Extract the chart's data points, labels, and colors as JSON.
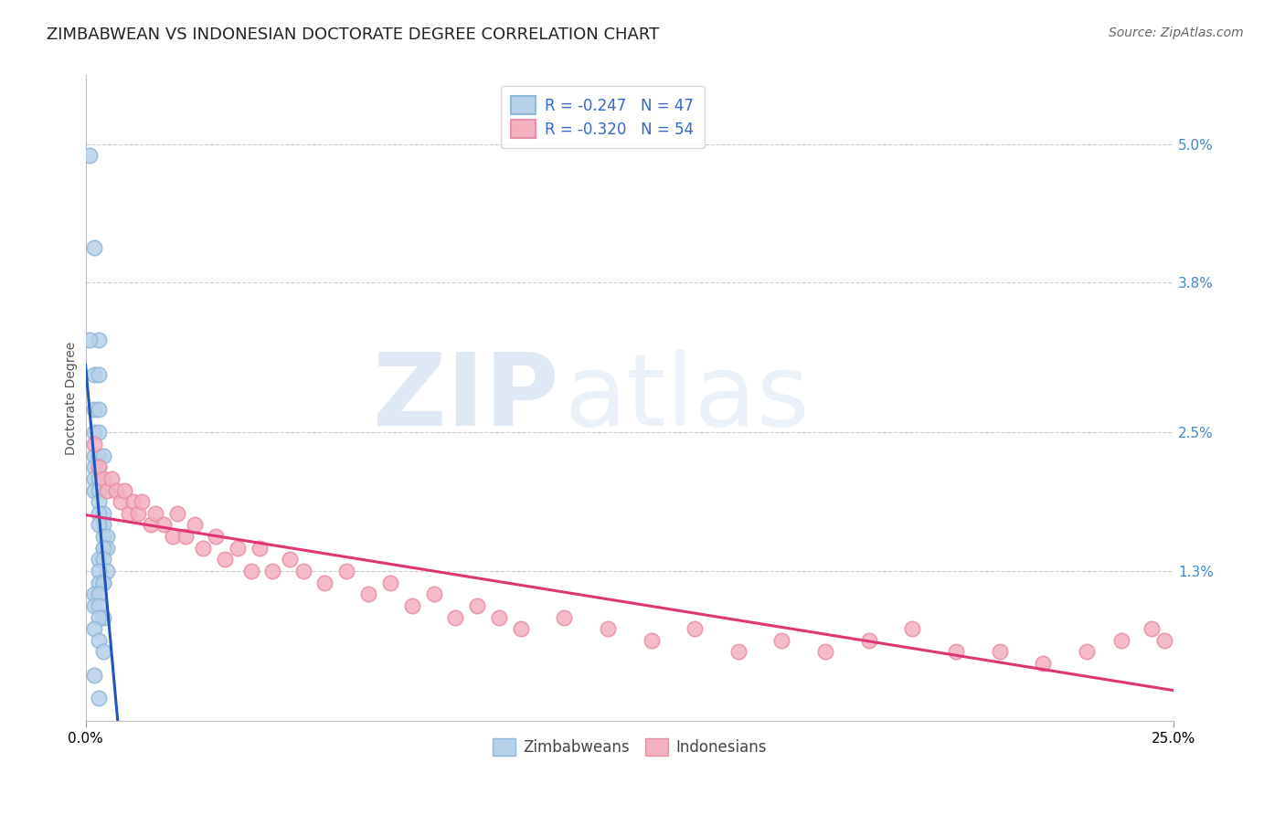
{
  "title": "ZIMBABWEAN VS INDONESIAN DOCTORATE DEGREE CORRELATION CHART",
  "source": "Source: ZipAtlas.com",
  "ylabel": "Doctorate Degree",
  "xmin": 0.0,
  "xmax": 0.25,
  "ymin": 0.0,
  "ymax": 0.056,
  "ytick_vals": [
    0.013,
    0.025,
    0.038,
    0.05
  ],
  "ytick_labels": [
    "1.3%",
    "2.5%",
    "3.8%",
    "5.0%"
  ],
  "grid_color": "#cccccc",
  "background_color": "#ffffff",
  "legend_r1": "R = -0.247",
  "legend_n1": "N = 47",
  "legend_r2": "R = -0.320",
  "legend_n2": "N = 54",
  "zim_color": "#b8d0e8",
  "ind_color": "#f5b0c0",
  "zim_edge": "#90b8d8",
  "ind_edge": "#e890a8",
  "zim_line": "#2255bb",
  "ind_line": "#e03575",
  "watermark_zip": "ZIP",
  "watermark_atlas": "atlas",
  "title_fontsize": 13,
  "source_fontsize": 10,
  "tick_fontsize": 11,
  "legend_fontsize": 12,
  "ylabel_fontsize": 10,
  "zim_x": [
    0.001,
    0.002,
    0.003,
    0.001,
    0.002,
    0.003,
    0.002,
    0.003,
    0.002,
    0.003,
    0.002,
    0.003,
    0.004,
    0.002,
    0.003,
    0.002,
    0.003,
    0.002,
    0.003,
    0.003,
    0.004,
    0.003,
    0.004,
    0.003,
    0.004,
    0.005,
    0.004,
    0.005,
    0.004,
    0.003,
    0.004,
    0.005,
    0.003,
    0.004,
    0.003,
    0.004,
    0.002,
    0.003,
    0.002,
    0.003,
    0.004,
    0.003,
    0.002,
    0.003,
    0.004,
    0.002,
    0.003
  ],
  "zim_y": [
    0.049,
    0.041,
    0.033,
    0.033,
    0.03,
    0.03,
    0.027,
    0.027,
    0.025,
    0.025,
    0.023,
    0.023,
    0.023,
    0.022,
    0.022,
    0.021,
    0.021,
    0.02,
    0.02,
    0.019,
    0.018,
    0.018,
    0.017,
    0.017,
    0.016,
    0.016,
    0.015,
    0.015,
    0.015,
    0.014,
    0.014,
    0.013,
    0.013,
    0.012,
    0.012,
    0.012,
    0.011,
    0.011,
    0.01,
    0.01,
    0.009,
    0.009,
    0.008,
    0.007,
    0.006,
    0.004,
    0.002
  ],
  "ind_x": [
    0.002,
    0.003,
    0.004,
    0.005,
    0.006,
    0.007,
    0.008,
    0.009,
    0.01,
    0.011,
    0.012,
    0.013,
    0.015,
    0.016,
    0.018,
    0.02,
    0.021,
    0.023,
    0.025,
    0.027,
    0.03,
    0.032,
    0.035,
    0.038,
    0.04,
    0.043,
    0.047,
    0.05,
    0.055,
    0.06,
    0.065,
    0.07,
    0.075,
    0.08,
    0.085,
    0.09,
    0.095,
    0.1,
    0.11,
    0.12,
    0.13,
    0.14,
    0.15,
    0.16,
    0.17,
    0.18,
    0.19,
    0.2,
    0.21,
    0.22,
    0.23,
    0.238,
    0.245,
    0.248
  ],
  "ind_y": [
    0.024,
    0.022,
    0.021,
    0.02,
    0.021,
    0.02,
    0.019,
    0.02,
    0.018,
    0.019,
    0.018,
    0.019,
    0.017,
    0.018,
    0.017,
    0.016,
    0.018,
    0.016,
    0.017,
    0.015,
    0.016,
    0.014,
    0.015,
    0.013,
    0.015,
    0.013,
    0.014,
    0.013,
    0.012,
    0.013,
    0.011,
    0.012,
    0.01,
    0.011,
    0.009,
    0.01,
    0.009,
    0.008,
    0.009,
    0.008,
    0.007,
    0.008,
    0.006,
    0.007,
    0.006,
    0.007,
    0.008,
    0.006,
    0.006,
    0.005,
    0.006,
    0.007,
    0.008,
    0.007
  ]
}
